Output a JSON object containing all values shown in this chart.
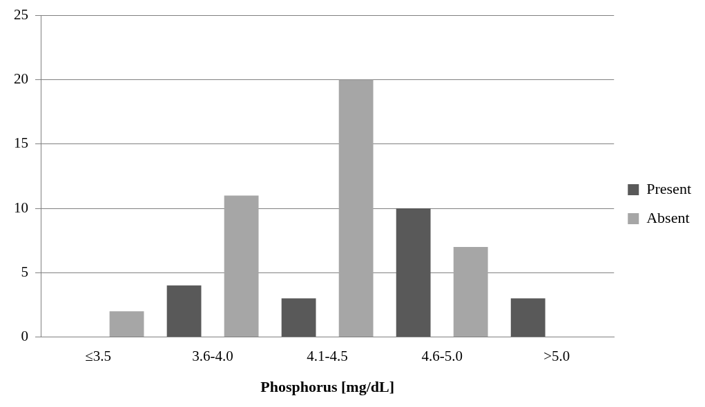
{
  "chart_data": {
    "type": "bar",
    "xlabel": "Phosphorus [mg/dL]",
    "categories": [
      "≤3.5",
      "3.6-4.0",
      "4.1-4.5",
      "4.6-5.0",
      ">5.0"
    ],
    "series": [
      {
        "name": "Present",
        "color": "#595959",
        "values": [
          0,
          4,
          3,
          10,
          3
        ]
      },
      {
        "name": "Absent",
        "color": "#a6a6a6",
        "values": [
          2,
          11,
          20,
          7,
          0
        ]
      }
    ],
    "ylim": [
      0,
      25
    ],
    "yticks": [
      0,
      5,
      10,
      15,
      20,
      25
    ],
    "grid": "y",
    "legend": "right"
  }
}
